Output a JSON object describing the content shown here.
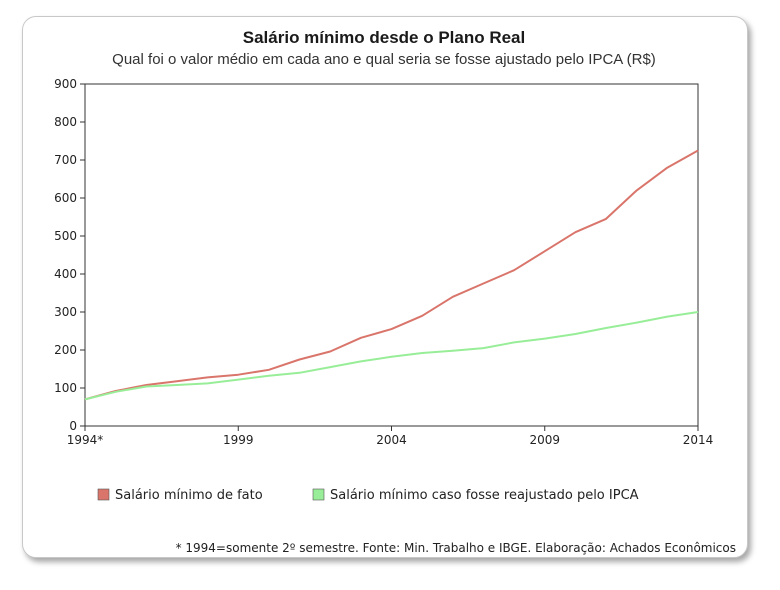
{
  "chart_data": {
    "type": "line",
    "title": "Salário mínimo desde o Plano Real",
    "subtitle": "Qual foi o valor médio em cada ano e qual seria se fosse ajustado pelo IPCA (R$)",
    "x": [
      1994,
      1995,
      1996,
      1997,
      1998,
      1999,
      2000,
      2001,
      2002,
      2003,
      2004,
      2005,
      2006,
      2007,
      2008,
      2009,
      2010,
      2011,
      2012,
      2013,
      2014
    ],
    "x_ticks": [
      {
        "value": 1994,
        "label": "1994*"
      },
      {
        "value": 1999,
        "label": "1999"
      },
      {
        "value": 2004,
        "label": "2004"
      },
      {
        "value": 2009,
        "label": "2009"
      },
      {
        "value": 2014,
        "label": "2014"
      }
    ],
    "y_ticks": [
      0,
      100,
      200,
      300,
      400,
      500,
      600,
      700,
      800,
      900
    ],
    "xlim": [
      1994,
      2014
    ],
    "ylim": [
      0,
      900
    ],
    "grid": false,
    "legend_position": "bottom",
    "series": [
      {
        "name": "Salário mínimo de fato",
        "color": "#d9756b",
        "values": [
          70,
          92,
          108,
          118,
          128,
          135,
          148,
          175,
          196,
          232,
          255,
          290,
          340,
          375,
          410,
          460,
          510,
          545,
          620,
          680,
          725
        ]
      },
      {
        "name": "Salário mínimo caso fosse reajustado pelo IPCA",
        "color": "#98ee98",
        "values": [
          70,
          90,
          104,
          108,
          112,
          122,
          132,
          140,
          155,
          170,
          182,
          192,
          198,
          205,
          220,
          230,
          242,
          258,
          272,
          288,
          300
        ]
      }
    ],
    "footnote": "* 1994=somente 2º semestre. Fonte: Min. Trabalho e IBGE. Elaboração: Achados Econômicos"
  }
}
